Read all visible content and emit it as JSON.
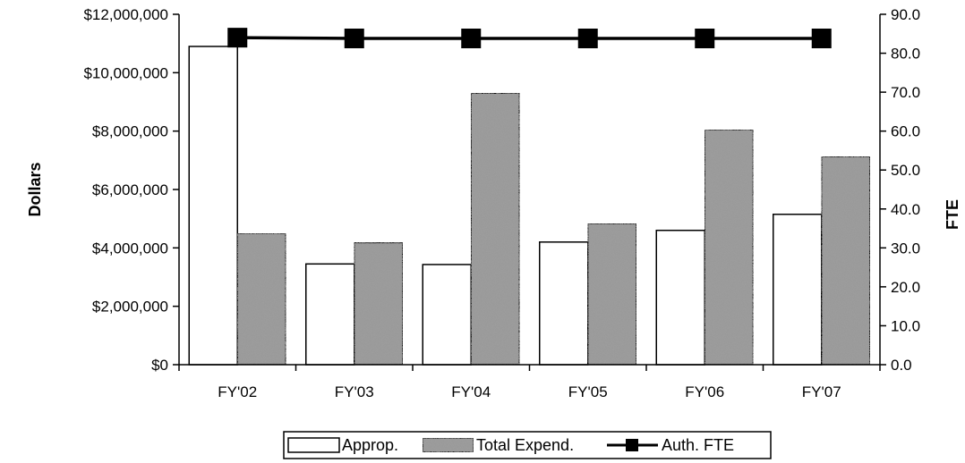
{
  "chart_data": {
    "type": "bar",
    "categories": [
      "FY'02",
      "FY'03",
      "FY'04",
      "FY'05",
      "FY'06",
      "FY'07"
    ],
    "series": [
      {
        "name": "Approp.",
        "type": "bar",
        "axis": "left",
        "values": [
          10900000,
          3450000,
          3430000,
          4200000,
          4600000,
          5150000
        ]
      },
      {
        "name": "Total Expend.",
        "type": "bar",
        "axis": "left",
        "values": [
          4500000,
          4180000,
          9300000,
          4830000,
          8050000,
          7130000
        ]
      },
      {
        "name": "Auth. FTE",
        "type": "line",
        "axis": "right",
        "values": [
          84.0,
          83.8,
          83.8,
          83.8,
          83.8,
          83.8
        ]
      }
    ],
    "ylabel": "Dollars",
    "y2label": "FTE",
    "ylim": [
      0,
      12000000
    ],
    "y2lim": [
      0,
      90
    ],
    "yticks": [
      "$0",
      "$2,000,000",
      "$4,000,000",
      "$6,000,000",
      "$8,000,000",
      "$10,000,000",
      "$12,000,000"
    ],
    "y2ticks": [
      "0.0",
      "10.0",
      "20.0",
      "30.0",
      "40.0",
      "50.0",
      "60.0",
      "70.0",
      "80.0",
      "90.0"
    ],
    "legend_position": "bottom",
    "grid": false,
    "colors": {
      "approp": "#ffffff",
      "expend": "#9a9a9a",
      "fte": "#000000"
    }
  }
}
